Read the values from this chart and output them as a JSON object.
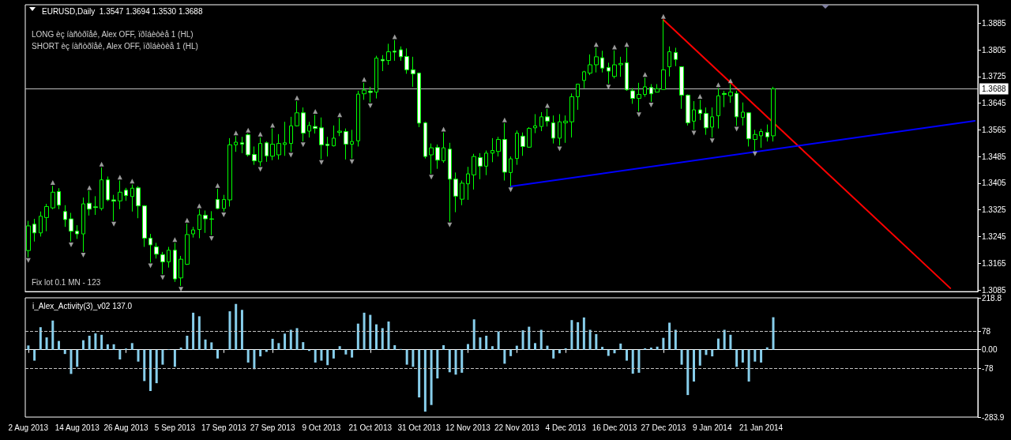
{
  "chart_data": [
    {
      "type": "candlestick",
      "title": "EURUSD,Daily  1.3547 1.3694 1.3530 1.3688",
      "annotations": [
        "LONG èç íàñòðîåê, Alex OFF, ïðîáèòèå 1 (HL)",
        "SHORT èç íàñòðîåê, Alex OFF, ïðîáèòèå 1 (HL)",
        "Fix lot 0.1 MN - 123"
      ],
      "categories": [
        null,
        null,
        null,
        null,
        null,
        null,
        null,
        null,
        null,
        null,
        null,
        null,
        null,
        null,
        null,
        null,
        null,
        null,
        null,
        null,
        null,
        null,
        null,
        null,
        null,
        null,
        null,
        null,
        null,
        null,
        null,
        null,
        null,
        null,
        null,
        null,
        null,
        null,
        null,
        null,
        null,
        null,
        null,
        null,
        null,
        null,
        null,
        null,
        null,
        null,
        null,
        null,
        null,
        null,
        null,
        null,
        null,
        null,
        null,
        null,
        null,
        null,
        null,
        null,
        null,
        null,
        null,
        null,
        null,
        null,
        null,
        null,
        null,
        null,
        null,
        null,
        null,
        null,
        null,
        null,
        null,
        null,
        null,
        null,
        null,
        null,
        null,
        null,
        null,
        null,
        null,
        null,
        null,
        null,
        null,
        null,
        null,
        null,
        null,
        null,
        null,
        null,
        null,
        null,
        null,
        null,
        null,
        null,
        null,
        null,
        null,
        null,
        null,
        null,
        null,
        null,
        null,
        null,
        null,
        null,
        null,
        null,
        null,
        null,
        null,
        null,
        null,
        null,
        null,
        null,
        null,
        null,
        null,
        null,
        null,
        null,
        null,
        null,
        null,
        null,
        null,
        null,
        null,
        null,
        null,
        null,
        null,
        null,
        null,
        null,
        null,
        null,
        null,
        null,
        null,
        null
      ],
      "color": "#00ff00",
      "ohlc": [
        [
          1.3203,
          1.3292,
          1.3183,
          1.3277
        ],
        [
          1.3282,
          1.3298,
          1.323,
          1.3256
        ],
        [
          1.3256,
          1.332,
          1.3245,
          1.3306
        ],
        [
          1.3302,
          1.3343,
          1.3261,
          1.3335
        ],
        [
          1.3331,
          1.3397,
          1.3327,
          1.3378
        ],
        [
          1.338,
          1.339,
          1.3327,
          1.3339
        ],
        [
          1.332,
          1.3339,
          1.3274,
          1.3296
        ],
        [
          1.3298,
          1.3316,
          1.323,
          1.3261
        ],
        [
          1.3261,
          1.3279,
          1.3238,
          1.3253
        ],
        [
          1.3253,
          1.3362,
          1.3199,
          1.3343
        ],
        [
          1.3345,
          1.3382,
          1.3308,
          1.3327
        ],
        [
          1.3334,
          1.3366,
          1.331,
          1.3332
        ],
        [
          1.3329,
          1.3452,
          1.3323,
          1.3415
        ],
        [
          1.3415,
          1.3425,
          1.3351,
          1.3355
        ],
        [
          1.3355,
          1.337,
          1.3292,
          1.3351
        ],
        [
          1.3352,
          1.3413,
          1.3327,
          1.3378
        ],
        [
          1.3384,
          1.3391,
          1.3352,
          1.3368
        ],
        [
          1.3365,
          1.3401,
          1.332,
          1.339
        ],
        [
          1.3391,
          1.3396,
          1.33,
          1.3337
        ],
        [
          1.3337,
          1.3339,
          1.3214,
          1.324
        ],
        [
          1.324,
          1.3253,
          1.3167,
          1.322
        ],
        [
          1.3214,
          1.3226,
          1.3179,
          1.3192
        ],
        [
          1.3191,
          1.3199,
          1.3132,
          1.3169
        ],
        [
          1.3169,
          1.3214,
          1.3152,
          1.3204
        ],
        [
          1.3204,
          1.3226,
          1.3109,
          1.3118
        ],
        [
          1.3121,
          1.3187,
          1.3097,
          1.3177
        ],
        [
          1.3162,
          1.3284,
          1.316,
          1.3251
        ],
        [
          1.3253,
          1.3274,
          1.3242,
          1.3265
        ],
        [
          1.3266,
          1.3327,
          1.324,
          1.331
        ],
        [
          1.3309,
          1.3323,
          1.3256,
          1.3298
        ],
        [
          1.3298,
          1.3321,
          1.3249,
          1.3297
        ],
        [
          1.3356,
          1.3388,
          1.3327,
          1.3329
        ],
        [
          1.3329,
          1.337,
          1.332,
          1.3356
        ],
        [
          1.3355,
          1.354,
          1.3335,
          1.352
        ],
        [
          1.352,
          1.3546,
          1.3499,
          1.3528
        ],
        [
          1.3526,
          1.3544,
          1.3495,
          1.3522
        ],
        [
          1.355,
          1.3554,
          1.3485,
          1.349
        ],
        [
          1.3491,
          1.3515,
          1.346,
          1.3472
        ],
        [
          1.3469,
          1.3542,
          1.3456,
          1.3524
        ],
        [
          1.3526,
          1.353,
          1.3469,
          1.3487
        ],
        [
          1.3486,
          1.3569,
          1.3474,
          1.3522
        ],
        [
          1.349,
          1.3552,
          1.3476,
          1.3524
        ],
        [
          1.3521,
          1.3589,
          1.3487,
          1.3526
        ],
        [
          1.3524,
          1.3604,
          1.3499,
          1.3577
        ],
        [
          1.3577,
          1.3651,
          1.3575,
          1.3616
        ],
        [
          1.3616,
          1.3632,
          1.353,
          1.3555
        ],
        [
          1.3561,
          1.3589,
          1.3542,
          1.3578
        ],
        [
          1.3575,
          1.361,
          1.3554,
          1.3569
        ],
        [
          1.3571,
          1.3602,
          1.3477,
          1.352
        ],
        [
          1.3522,
          1.3544,
          1.3485,
          1.3518
        ],
        [
          1.3517,
          1.3578,
          1.3515,
          1.354
        ],
        [
          1.3557,
          1.36,
          1.3546,
          1.3561
        ],
        [
          1.356,
          1.3569,
          1.3476,
          1.3522
        ],
        [
          1.3522,
          1.3565,
          1.3479,
          1.353
        ],
        [
          1.3532,
          1.3682,
          1.3515,
          1.3672
        ],
        [
          1.3673,
          1.3706,
          1.3655,
          1.3684
        ],
        [
          1.3681,
          1.3694,
          1.3647,
          1.3677
        ],
        [
          1.3678,
          1.3787,
          1.3659,
          1.378
        ],
        [
          1.3776,
          1.3789,
          1.3741,
          1.3772
        ],
        [
          1.3773,
          1.3823,
          1.376,
          1.3799
        ],
        [
          1.3801,
          1.3834,
          1.3772,
          1.3798
        ],
        [
          1.3805,
          1.3815,
          1.3772,
          1.3784
        ],
        [
          1.3785,
          1.3809,
          1.3733,
          1.3745
        ],
        [
          1.3745,
          1.3784,
          1.3694,
          1.3733
        ],
        [
          1.3735,
          1.3737,
          1.3573,
          1.3585
        ],
        [
          1.3586,
          1.3589,
          1.3479,
          1.3485
        ],
        [
          1.349,
          1.3524,
          1.3433,
          1.3511
        ],
        [
          1.3512,
          1.3521,
          1.3448,
          1.3474
        ],
        [
          1.3472,
          1.3557,
          1.3466,
          1.3511
        ],
        [
          1.3507,
          1.3526,
          1.329,
          1.3417
        ],
        [
          1.3417,
          1.3437,
          1.3318,
          1.3366
        ],
        [
          1.3357,
          1.3413,
          1.3339,
          1.3405
        ],
        [
          1.3403,
          1.3454,
          1.3355,
          1.3433
        ],
        [
          1.343,
          1.3493,
          1.3386,
          1.3485
        ],
        [
          1.3482,
          1.3495,
          1.3417,
          1.3456
        ],
        [
          1.3456,
          1.3503,
          1.3429,
          1.3495
        ],
        [
          1.3495,
          1.354,
          1.3468,
          1.3503
        ],
        [
          1.35,
          1.3544,
          1.3485,
          1.3536
        ],
        [
          1.3536,
          1.3585,
          1.3413,
          1.3438
        ],
        [
          1.3437,
          1.3485,
          1.3395,
          1.3478
        ],
        [
          1.3479,
          1.3563,
          1.346,
          1.3555
        ],
        [
          1.3546,
          1.3557,
          1.3487,
          1.3515
        ],
        [
          1.3513,
          1.3573,
          1.3511,
          1.3569
        ],
        [
          1.3571,
          1.3612,
          1.3555,
          1.3577
        ],
        [
          1.3575,
          1.3618,
          1.3561,
          1.3604
        ],
        [
          1.3604,
          1.3628,
          1.3575,
          1.3591
        ],
        [
          1.3586,
          1.3608,
          1.3524,
          1.354
        ],
        [
          1.354,
          1.3612,
          1.3518,
          1.3589
        ],
        [
          1.3586,
          1.3608,
          1.3526,
          1.3591
        ],
        [
          1.3589,
          1.3674,
          1.3542,
          1.3664
        ],
        [
          1.3664,
          1.3703,
          1.3625,
          1.3702
        ],
        [
          1.3713,
          1.3742,
          1.369,
          1.3739
        ],
        [
          1.3735,
          1.3791,
          1.3729,
          1.376
        ],
        [
          1.376,
          1.3811,
          1.3737,
          1.3784
        ],
        [
          1.3781,
          1.3802,
          1.3737,
          1.375
        ],
        [
          1.3752,
          1.3766,
          1.3703,
          1.3741
        ],
        [
          1.3725,
          1.3803,
          1.3719,
          1.376
        ],
        [
          1.376,
          1.3784,
          1.3724,
          1.3764
        ],
        [
          1.3766,
          1.3811,
          1.3682,
          1.3685
        ],
        [
          1.3682,
          1.369,
          1.3643,
          1.3659
        ],
        [
          1.3659,
          1.3706,
          1.362,
          1.3671
        ],
        [
          1.3671,
          1.3721,
          1.3664,
          1.3694
        ],
        [
          1.3692,
          1.3702,
          1.3649,
          1.3673
        ],
        [
          1.3678,
          1.3702,
          1.3677,
          1.3688
        ],
        [
          1.3686,
          1.3895,
          1.3685,
          1.3745
        ],
        [
          1.3754,
          1.3815,
          1.3725,
          1.3799
        ],
        [
          1.3797,
          1.3811,
          1.3756,
          1.3776
        ],
        [
          1.3754,
          1.3755,
          1.3628,
          1.3669
        ],
        [
          1.3669,
          1.3671,
          1.3578,
          1.3586
        ],
        [
          1.3591,
          1.3651,
          1.3565,
          1.3625
        ],
        [
          1.3625,
          1.3655,
          1.3594,
          1.3614
        ],
        [
          1.3614,
          1.3632,
          1.355,
          1.3571
        ],
        [
          1.3573,
          1.3632,
          1.3542,
          1.3604
        ],
        [
          1.3607,
          1.369,
          1.3569,
          1.3667
        ],
        [
          1.3674,
          1.3682,
          1.3633,
          1.3671
        ],
        [
          1.3667,
          1.3702,
          1.3646,
          1.3678
        ],
        [
          1.3674,
          1.3682,
          1.3577,
          1.3604
        ],
        [
          1.3602,
          1.3647,
          1.3578,
          1.3618
        ],
        [
          1.3616,
          1.3618,
          1.3515,
          1.3538
        ],
        [
          1.3536,
          1.3565,
          1.3503,
          1.3551
        ],
        [
          1.3547,
          1.3568,
          1.3511,
          1.356
        ],
        [
          1.3557,
          1.3581,
          1.353,
          1.3544
        ],
        [
          1.3547,
          1.3694,
          1.353,
          1.3688
        ],
        null,
        null,
        null,
        null,
        null,
        null,
        null,
        null,
        null,
        null,
        null,
        null,
        null,
        null,
        null,
        null,
        null,
        null,
        null,
        null,
        null,
        null,
        null,
        null,
        null,
        null,
        null,
        null,
        null,
        null,
        null,
        null,
        null
      ],
      "ylim": [
        1.308,
        1.394
      ],
      "yticks": [
        1.3885,
        1.3805,
        1.3725,
        1.3645,
        1.3565,
        1.3485,
        1.3405,
        1.3325,
        1.3245,
        1.3165,
        1.3085
      ],
      "tick_labels": "y",
      "ref_lines": [
        {
          "axis": "y",
          "value": 1.3688,
          "label": "1.3688",
          "color": "#c0c0c0"
        }
      ],
      "series": [
        {
          "type": "line",
          "color": "#ff0000",
          "values": [
            null,
            null,
            null,
            null,
            null,
            null,
            null,
            null,
            null,
            null,
            null,
            null,
            null,
            null,
            null,
            null,
            null,
            null,
            null,
            null,
            null,
            null,
            null,
            null,
            null,
            null,
            null,
            null,
            null,
            null,
            null,
            null,
            null,
            null,
            null,
            null,
            null,
            null,
            null,
            null,
            null,
            null,
            null,
            null,
            null,
            null,
            null,
            null,
            null,
            null,
            null,
            null,
            null,
            null,
            null,
            null,
            null,
            null,
            null,
            null,
            null,
            null,
            null,
            null,
            null,
            null,
            null,
            null,
            null,
            null,
            null,
            null,
            null,
            null,
            null,
            null,
            null,
            null,
            null,
            null,
            null,
            null,
            null,
            null,
            null,
            null,
            null,
            null,
            null,
            null,
            null,
            null,
            null,
            null,
            null,
            null,
            null,
            null,
            null,
            null,
            null,
            null,
            null,
            null,
            1.3895,
            null,
            null,
            null,
            null,
            null,
            null,
            null,
            null,
            null,
            null,
            null,
            null,
            null,
            null,
            null,
            null,
            null,
            null,
            null,
            null,
            null,
            null,
            null,
            null,
            null,
            null,
            null,
            null,
            null,
            null,
            null,
            null,
            null,
            null,
            null,
            null,
            null,
            null,
            null,
            null,
            null,
            null,
            null,
            null,
            null,
            null,
            1.309,
            null,
            null,
            null,
            null
          ]
        },
        {
          "type": "line",
          "color": "#0000ff",
          "values": [
            null,
            null,
            null,
            null,
            null,
            null,
            null,
            null,
            null,
            null,
            null,
            null,
            null,
            null,
            null,
            null,
            null,
            null,
            null,
            null,
            null,
            null,
            null,
            null,
            null,
            null,
            null,
            null,
            null,
            null,
            null,
            null,
            null,
            null,
            null,
            null,
            null,
            null,
            null,
            null,
            null,
            null,
            null,
            null,
            null,
            null,
            null,
            null,
            null,
            null,
            null,
            null,
            null,
            null,
            null,
            null,
            null,
            null,
            null,
            null,
            null,
            null,
            null,
            null,
            null,
            null,
            null,
            null,
            null,
            null,
            null,
            null,
            null,
            null,
            null,
            null,
            null,
            null,
            null,
            1.3395,
            null,
            null,
            null,
            null,
            null,
            null,
            null,
            null,
            null,
            null,
            null,
            null,
            null,
            null,
            null,
            null,
            null,
            null,
            null,
            null,
            null,
            null,
            null,
            null,
            null,
            null,
            null,
            null,
            null,
            null,
            null,
            null,
            null,
            null,
            null,
            null,
            null,
            null,
            null,
            null,
            null,
            null,
            null,
            null,
            null,
            null,
            null,
            null,
            null,
            null,
            null,
            null,
            null,
            null,
            null,
            null,
            null,
            null,
            null,
            null,
            null,
            null,
            null,
            null,
            null,
            null,
            null,
            null,
            null,
            null,
            null,
            null,
            null,
            null,
            null,
            1.3592
          ]
        },
        {
          "type": "scatter",
          "color": "#c0c0c0",
          "marker": "triangle",
          "values": [
            null,
            null,
            null,
            null,
            1.3407,
            null,
            null,
            null,
            null,
            null,
            1.3392,
            null,
            1.3462,
            null,
            null,
            1.3423,
            null,
            1.3411,
            null,
            null,
            null,
            null,
            null,
            null,
            1.3236,
            null,
            1.3294,
            null,
            1.3337,
            null,
            null,
            1.3398,
            null,
            null,
            1.3556,
            null,
            1.3564,
            null,
            1.3552,
            null,
            1.3579,
            null,
            null,
            null,
            1.3661,
            null,
            null,
            1.362,
            null,
            null,
            null,
            1.361,
            null,
            null,
            null,
            1.3716,
            null,
            null,
            null,
            null,
            1.3844,
            null,
            null,
            null,
            null,
            null,
            null,
            null,
            1.3567,
            null,
            null,
            null,
            null,
            null,
            null,
            null,
            null,
            null,
            1.3595,
            null,
            null,
            null,
            null,
            null,
            null,
            1.3638,
            null,
            null,
            null,
            null,
            null,
            null,
            null,
            1.3821,
            null,
            null,
            1.3813,
            null,
            1.3821,
            null,
            null,
            1.3731,
            null,
            null,
            1.3905,
            null,
            null,
            null,
            null,
            null,
            1.3665,
            null,
            null,
            1.37,
            null,
            1.3712,
            null,
            null,
            null,
            null,
            null,
            null,
            null,
            null,
            null,
            null,
            null,
            null,
            null,
            null,
            null,
            null,
            null,
            null,
            null,
            null,
            null,
            null,
            null,
            null,
            null,
            null,
            null,
            null,
            null,
            null,
            null,
            null,
            null,
            null,
            null,
            null,
            null,
            null,
            null,
            null
          ]
        },
        {
          "type": "scatter",
          "color": "#c0c0c0",
          "marker": "triangle",
          "values": [
            1.3173,
            null,
            null,
            null,
            null,
            null,
            null,
            1.322,
            null,
            1.3189,
            null,
            null,
            null,
            null,
            1.3282,
            null,
            null,
            null,
            null,
            null,
            1.3157,
            null,
            1.3122,
            null,
            null,
            1.3087,
            null,
            null,
            null,
            null,
            1.3239,
            null,
            1.331,
            null,
            null,
            null,
            null,
            null,
            1.3446,
            null,
            null,
            null,
            null,
            1.3489,
            null,
            1.352,
            null,
            null,
            1.3467,
            null,
            null,
            null,
            null,
            1.3469,
            null,
            null,
            1.3637,
            null,
            null,
            null,
            null,
            null,
            null,
            null,
            null,
            null,
            1.3423,
            null,
            null,
            1.328,
            null,
            null,
            null,
            null,
            null,
            null,
            null,
            null,
            null,
            1.3385,
            null,
            null,
            null,
            null,
            null,
            null,
            null,
            1.3508,
            null,
            null,
            null,
            null,
            null,
            null,
            null,
            1.3693,
            null,
            null,
            null,
            null,
            1.361,
            null,
            1.3639,
            null,
            null,
            null,
            null,
            null,
            null,
            1.3555,
            null,
            null,
            1.3532,
            null,
            null,
            null,
            1.3567,
            null,
            null,
            1.3493,
            null,
            null,
            null,
            null,
            null,
            null,
            null,
            null,
            null,
            null,
            null,
            null,
            null,
            null,
            null,
            null,
            null,
            null,
            null,
            null,
            null,
            null,
            null,
            null,
            null,
            null,
            null,
            null,
            null,
            null,
            null,
            null,
            null,
            null,
            null,
            null
          ]
        }
      ]
    },
    {
      "type": "bar",
      "title": "i_Alex_Activity(3)_v02 137.0",
      "categories": [
        "2 Aug 2013",
        null,
        null,
        null,
        null,
        null,
        null,
        null,
        "14 Aug 2013",
        null,
        null,
        null,
        null,
        null,
        null,
        null,
        "26 Aug 2013",
        null,
        null,
        null,
        null,
        null,
        null,
        null,
        "5 Sep 2013",
        null,
        null,
        null,
        null,
        null,
        null,
        null,
        "17 Sep 2013",
        null,
        null,
        null,
        null,
        null,
        null,
        null,
        "27 Sep 2013",
        null,
        null,
        null,
        null,
        null,
        null,
        null,
        "9 Oct 2013",
        null,
        null,
        null,
        null,
        null,
        null,
        null,
        "21 Oct 2013",
        null,
        null,
        null,
        null,
        null,
        null,
        null,
        "31 Oct 2013",
        null,
        null,
        null,
        null,
        null,
        null,
        null,
        "12 Nov 2013",
        null,
        null,
        null,
        null,
        null,
        null,
        null,
        "22 Nov 2013",
        null,
        null,
        null,
        null,
        null,
        null,
        null,
        "4 Dec 2013",
        null,
        null,
        null,
        null,
        null,
        null,
        null,
        "16 Dec 2013",
        null,
        null,
        null,
        null,
        null,
        null,
        null,
        "27 Dec 2013",
        null,
        null,
        null,
        null,
        null,
        null,
        null,
        "9 Jan 2014",
        null,
        null,
        null,
        null,
        null,
        null,
        null,
        "21 Jan 2014",
        null,
        null,
        null,
        null,
        null,
        null,
        null,
        null,
        null,
        null,
        null,
        null,
        null,
        null,
        null,
        null,
        null,
        null,
        null,
        null,
        null,
        null,
        null,
        null,
        null,
        null,
        null,
        null,
        null,
        null,
        null,
        null,
        null,
        null,
        null
      ],
      "color": "#87ceeb",
      "values": [
        18,
        -46,
        95,
        52,
        123,
        37,
        -18,
        -102,
        -72,
        40,
        59,
        69,
        63,
        23,
        23,
        -41,
        5,
        28,
        -50,
        -132,
        -174,
        -141,
        -63,
        2,
        -72,
        9,
        59,
        156,
        141,
        43,
        31,
        -37,
        1,
        162,
        193,
        168,
        -54,
        -82,
        -28,
        -9,
        46,
        28,
        68,
        84,
        91,
        32,
        -5,
        -54,
        -46,
        -65,
        -37,
        15,
        -20,
        -33,
        110,
        156,
        147,
        107,
        91,
        119,
        19,
        3,
        -63,
        -72,
        -201,
        -261,
        -233,
        -121,
        19,
        -95,
        -105,
        -97,
        24,
        128,
        52,
        59,
        15,
        77,
        -59,
        -27,
        17,
        82,
        97,
        28,
        84,
        17,
        -37,
        -15,
        6,
        125,
        116,
        136,
        84,
        66,
        12,
        -26,
        -15,
        26,
        -46,
        -101,
        -97,
        6,
        9,
        13,
        50,
        114,
        84,
        -63,
        -191,
        -134,
        -67,
        -22,
        -28,
        47,
        84,
        63,
        -72,
        -54,
        -134,
        -50,
        -54,
        10,
        137,
        null,
        null,
        null,
        null,
        null,
        null,
        null,
        null,
        null,
        null,
        null,
        null,
        null,
        null,
        null,
        null,
        null,
        null,
        null,
        null,
        null,
        null,
        null,
        null,
        null,
        null,
        null,
        null,
        null,
        null,
        null,
        null,
        null
      ],
      "ylim": [
        -283.9,
        218.8
      ],
      "yticks": [
        218.8,
        78,
        {
          "value": 0,
          "label": "0.00"
        },
        -78,
        -283.9
      ],
      "ref_lines": [
        {
          "axis": "y",
          "value": 78,
          "color": "#c0c0c0",
          "line_style": "dashed"
        },
        {
          "axis": "y",
          "value": -78,
          "color": "#c0c0c0",
          "line_style": "dashed"
        }
      ]
    }
  ]
}
